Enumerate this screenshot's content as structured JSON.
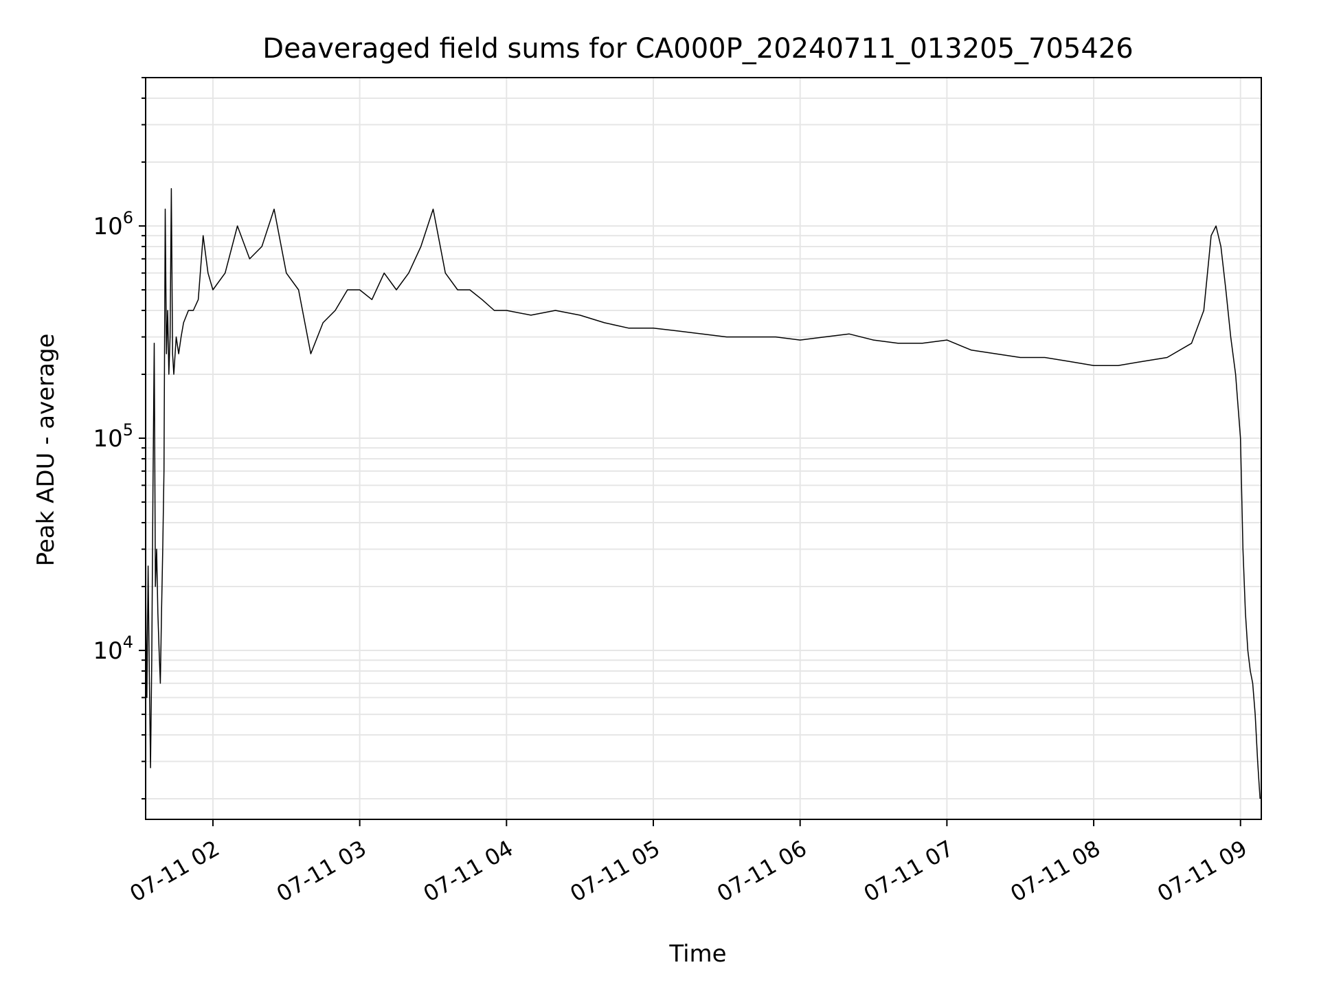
{
  "chart_data": {
    "type": "line",
    "title": "Deaveraged field sums for CA000P_20240711_013205_705426",
    "xlabel": "Time",
    "ylabel": "Peak ADU - average",
    "yscale": "log",
    "ylim": [
      1600,
      5000000
    ],
    "xlim": [
      "07-11 01:32:30",
      "07-11 09:08:30"
    ],
    "grid": true,
    "line_color": "#000000",
    "grid_color": "#e6e6e6",
    "x_ticks": [
      {
        "label": "07-11 02",
        "value": "07-11 02:00"
      },
      {
        "label": "07-11 03",
        "value": "07-11 03:00"
      },
      {
        "label": "07-11 04",
        "value": "07-11 04:00"
      },
      {
        "label": "07-11 05",
        "value": "07-11 05:00"
      },
      {
        "label": "07-11 06",
        "value": "07-11 06:00"
      },
      {
        "label": "07-11 07",
        "value": "07-11 07:00"
      },
      {
        "label": "07-11 08",
        "value": "07-11 08:00"
      },
      {
        "label": "07-11 09",
        "value": "07-11 09:00"
      }
    ],
    "y_ticks": [
      {
        "base": "10",
        "exp": "4",
        "value": 10000
      },
      {
        "base": "10",
        "exp": "5",
        "value": 100000
      },
      {
        "base": "10",
        "exp": "6",
        "value": 1000000
      }
    ],
    "series": [
      {
        "x": [
          "07-11 01:32:30",
          "07-11 01:33",
          "07-11 01:33:30",
          "07-11 01:34",
          "07-11 01:34:30",
          "07-11 01:35",
          "07-11 01:35:30",
          "07-11 01:36",
          "07-11 01:36:30",
          "07-11 01:37",
          "07-11 01:37:30",
          "07-11 01:38",
          "07-11 01:38:30",
          "07-11 01:39",
          "07-11 01:39:30",
          "07-11 01:40",
          "07-11 01:40:30",
          "07-11 01:41",
          "07-11 01:41:30",
          "07-11 01:42",
          "07-11 01:42:30",
          "07-11 01:43",
          "07-11 01:43:30",
          "07-11 01:44",
          "07-11 01:45",
          "07-11 01:46",
          "07-11 01:47",
          "07-11 01:48",
          "07-11 01:50",
          "07-11 01:52",
          "07-11 01:54",
          "07-11 01:56",
          "07-11 01:58",
          "07-11 02:00",
          "07-11 02:05",
          "07-11 02:10",
          "07-11 02:15",
          "07-11 02:20",
          "07-11 02:25",
          "07-11 02:30",
          "07-11 02:35",
          "07-11 02:40",
          "07-11 02:45",
          "07-11 02:50",
          "07-11 02:55",
          "07-11 03:00",
          "07-11 03:05",
          "07-11 03:10",
          "07-11 03:15",
          "07-11 03:20",
          "07-11 03:25",
          "07-11 03:30",
          "07-11 03:35",
          "07-11 03:40",
          "07-11 03:45",
          "07-11 03:50",
          "07-11 03:55",
          "07-11 04:00",
          "07-11 04:10",
          "07-11 04:20",
          "07-11 04:30",
          "07-11 04:40",
          "07-11 04:50",
          "07-11 05:00",
          "07-11 05:10",
          "07-11 05:20",
          "07-11 05:30",
          "07-11 05:40",
          "07-11 05:50",
          "07-11 06:00",
          "07-11 06:10",
          "07-11 06:20",
          "07-11 06:30",
          "07-11 06:40",
          "07-11 06:50",
          "07-11 07:00",
          "07-11 07:10",
          "07-11 07:20",
          "07-11 07:30",
          "07-11 07:40",
          "07-11 07:50",
          "07-11 08:00",
          "07-11 08:10",
          "07-11 08:20",
          "07-11 08:30",
          "07-11 08:40",
          "07-11 08:45",
          "07-11 08:48",
          "07-11 08:50",
          "07-11 08:52",
          "07-11 08:54",
          "07-11 08:56",
          "07-11 08:58",
          "07-11 09:00",
          "07-11 09:01",
          "07-11 09:02",
          "07-11 09:03",
          "07-11 09:04",
          "07-11 09:05",
          "07-11 09:06",
          "07-11 09:07",
          "07-11 09:08"
        ],
        "y": [
          20000,
          6000,
          25000,
          8000,
          2800,
          9000,
          60000,
          280000,
          20000,
          30000,
          15000,
          10000,
          7000,
          15000,
          30000,
          70000,
          1200000,
          250000,
          400000,
          200000,
          300000,
          1500000,
          250000,
          200000,
          300000,
          250000,
          300000,
          350000,
          400000,
          400000,
          450000,
          900000,
          600000,
          500000,
          600000,
          1000000,
          700000,
          800000,
          1200000,
          600000,
          500000,
          250000,
          350000,
          400000,
          500000,
          500000,
          450000,
          600000,
          500000,
          600000,
          800000,
          1200000,
          600000,
          500000,
          500000,
          450000,
          400000,
          400000,
          380000,
          400000,
          380000,
          350000,
          330000,
          330000,
          320000,
          310000,
          300000,
          300000,
          300000,
          290000,
          300000,
          310000,
          290000,
          280000,
          280000,
          290000,
          260000,
          250000,
          240000,
          240000,
          230000,
          220000,
          220000,
          230000,
          240000,
          280000,
          400000,
          900000,
          1000000,
          800000,
          500000,
          300000,
          200000,
          100000,
          30000,
          15000,
          10000,
          8000,
          7000,
          5000,
          3000,
          2000
        ]
      }
    ]
  }
}
